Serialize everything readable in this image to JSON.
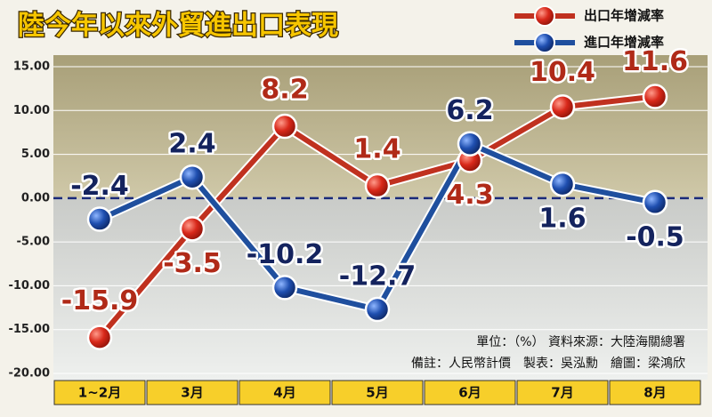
{
  "chart_data": {
    "type": "line",
    "title": "陸今年以來外貿進出口表現",
    "categories": [
      "1~2月",
      "3月",
      "4月",
      "5月",
      "6月",
      "7月",
      "8月"
    ],
    "series": [
      {
        "name": "出口年增減率",
        "color": "#c0311f",
        "values": [
          -15.9,
          -3.5,
          8.2,
          1.4,
          4.3,
          10.4,
          11.6
        ]
      },
      {
        "name": "進口年增減率",
        "color": "#1f4f9e",
        "values": [
          -2.4,
          2.4,
          -10.2,
          -12.7,
          6.2,
          1.6,
          -0.5
        ]
      }
    ],
    "ylim": [
      -20,
      15
    ],
    "yticks": [
      {
        "value": -20,
        "label": "-20.00"
      },
      {
        "value": -15,
        "label": "-15.00"
      },
      {
        "value": -10,
        "label": "-10.00"
      },
      {
        "value": -5,
        "label": "-5.00"
      },
      {
        "value": 0,
        "label": "0.00"
      },
      {
        "value": 5,
        "label": "5.00"
      },
      {
        "value": 10,
        "label": "10.00"
      },
      {
        "value": 15,
        "label": "15.00"
      }
    ],
    "grid": true,
    "legend": "top-right",
    "notes": [
      "單位：（%） 資料來源：大陸海關總署",
      "備註：人民幣計價　製表：吳泓勳　繪圖：梁鴻欣"
    ]
  }
}
